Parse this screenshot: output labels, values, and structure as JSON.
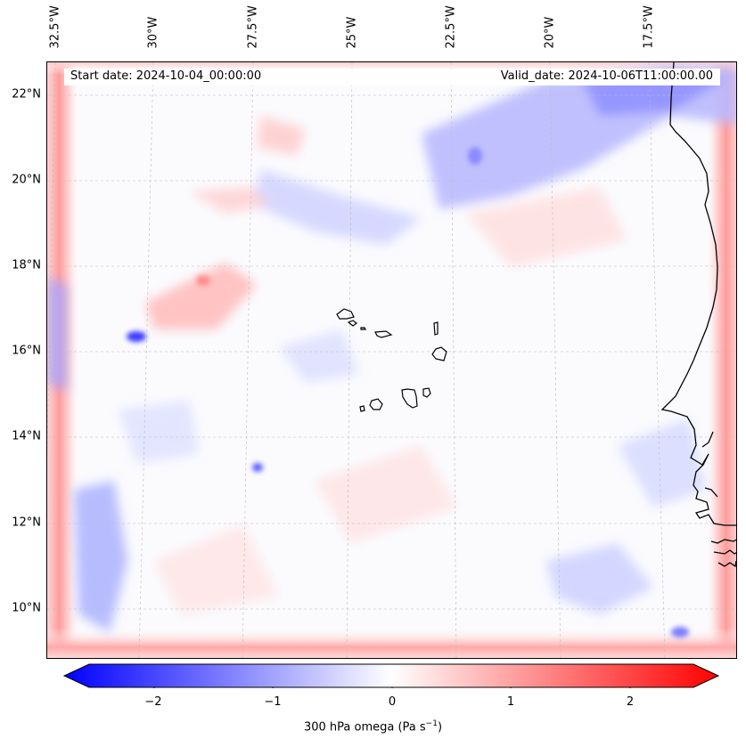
{
  "header": {
    "start_date": "Start date: 2024-10-04_00:00:00",
    "valid_date": "Valid_date: 2024-10-06T11:00:00.00"
  },
  "axes": {
    "lon_labels": [
      "32.5°W",
      "30°W",
      "27.5°W",
      "25°W",
      "22.5°W",
      "20°W",
      "17.5°W"
    ],
    "lat_labels": [
      "22°N",
      "20°N",
      "18°N",
      "16°N",
      "14°N",
      "12°N",
      "10°N"
    ]
  },
  "colorbar": {
    "ticks": [
      "−2",
      "−1",
      "0",
      "1",
      "2"
    ],
    "label": "300 hPa omega (Pa s",
    "label_exponent": "−1",
    "label_suffix": ")",
    "colors": {
      "negative": "#0000ff",
      "zero": "#ffffff",
      "positive": "#ff0000"
    },
    "range": [
      -2.5,
      2.5
    ]
  },
  "map": {
    "field": "300 hPa omega",
    "coastline_color": "#000000",
    "gridline_color": "#bbbbbb"
  }
}
